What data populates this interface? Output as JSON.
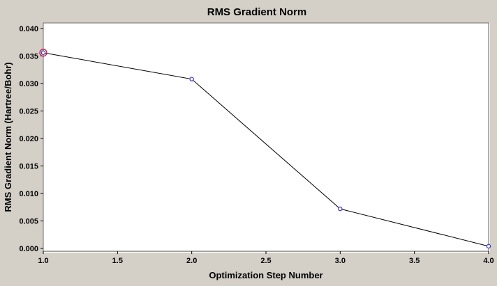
{
  "chart_data": {
    "type": "line",
    "title": "RMS Gradient Norm",
    "xlabel": "Optimization Step Number",
    "ylabel": "RMS Gradient Norm (Hartree/Bohr)",
    "x": [
      1.0,
      2.0,
      3.0,
      4.0
    ],
    "y": [
      0.0356,
      0.0308,
      0.0072,
      0.0004
    ],
    "xlim": [
      1.0,
      4.0
    ],
    "ylim": [
      0.0,
      0.04
    ],
    "xticks": [
      1.0,
      1.5,
      2.0,
      2.5,
      3.0,
      3.5,
      4.0
    ],
    "xtick_labels": [
      "1.0",
      "1.5",
      "2.0",
      "2.5",
      "3.0",
      "3.5",
      "4.0"
    ],
    "yticks": [
      0.0,
      0.005,
      0.01,
      0.015,
      0.02,
      0.025,
      0.03,
      0.035,
      0.04
    ],
    "ytick_labels": [
      "0.000",
      "0.005",
      "0.010",
      "0.015",
      "0.020",
      "0.025",
      "0.030",
      "0.035",
      "0.040"
    ],
    "grid": false,
    "legend": null,
    "selected_point_index": 0,
    "colors": {
      "background": "#d4d0c8",
      "plot_background": "#ffffff",
      "line": "#000000",
      "marker": "#3333cc",
      "selected_ring": "#cc2244",
      "text": "#000000"
    }
  }
}
